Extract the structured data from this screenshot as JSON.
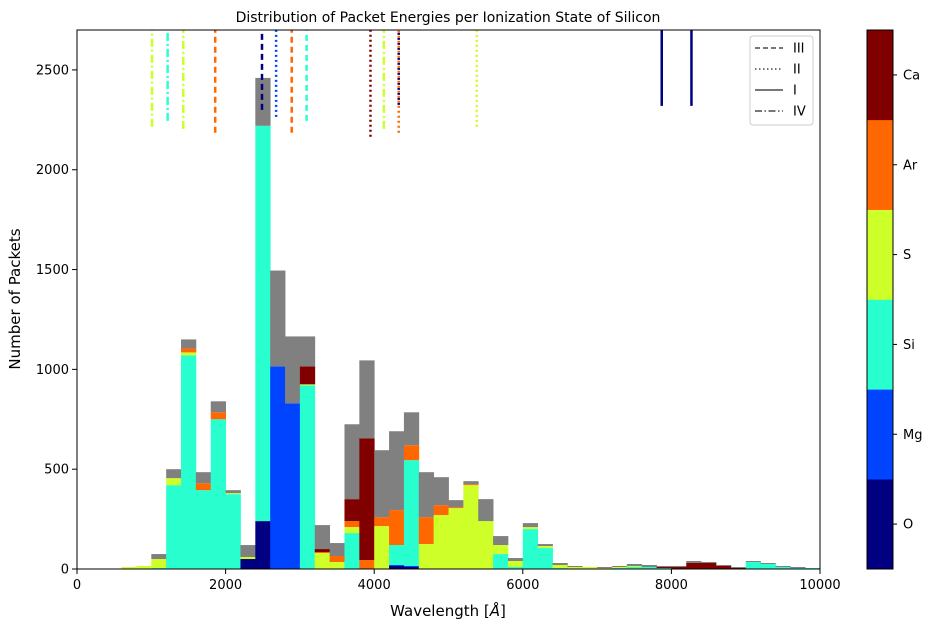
{
  "chart_data": {
    "type": "bar",
    "title": "Distribution of Packet Energies per Ionization State of Silicon",
    "xlabel": "Wavelength [$\\AA$]",
    "xlabel_text": "Wavelength [",
    "xlabel_unit": "Å",
    "xlabel_close": "]",
    "ylabel": "Number of Packets",
    "xlim": [
      0,
      10000
    ],
    "ylim": [
      0,
      2700
    ],
    "xticks": [
      0,
      2000,
      4000,
      6000,
      8000,
      10000
    ],
    "yticks": [
      0,
      500,
      1000,
      1500,
      2000,
      2500
    ],
    "bin_width": 200,
    "grid": false,
    "stacked": true,
    "series_order": [
      "O",
      "Mg",
      "Si",
      "S",
      "Ar",
      "Ca",
      "other"
    ],
    "series_colors": {
      "O": "#000080",
      "Mg": "#0044ff",
      "Si": "#29ffce",
      "S": "#ceff29",
      "Ar": "#ff6800",
      "Ca": "#800000",
      "other": "#808080"
    },
    "bins": [
      {
        "x0": 600,
        "total": 10,
        "O": 0,
        "Mg": 0,
        "Si": 0,
        "S": 10,
        "Ar": 0,
        "Ca": 0
      },
      {
        "x0": 800,
        "total": 15,
        "O": 0,
        "Mg": 0,
        "Si": 0,
        "S": 15,
        "Ar": 0,
        "Ca": 0
      },
      {
        "x0": 1000,
        "total": 75,
        "O": 0,
        "Mg": 0,
        "Si": 5,
        "S": 45,
        "Ar": 0,
        "Ca": 0
      },
      {
        "x0": 1200,
        "total": 500,
        "O": 0,
        "Mg": 0,
        "Si": 420,
        "S": 35,
        "Ar": 0,
        "Ca": 0
      },
      {
        "x0": 1400,
        "total": 1150,
        "O": 0,
        "Mg": 0,
        "Si": 1070,
        "S": 15,
        "Ar": 20,
        "Ca": 0
      },
      {
        "x0": 1600,
        "total": 485,
        "O": 0,
        "Mg": 0,
        "Si": 395,
        "S": 0,
        "Ar": 35,
        "Ca": 0
      },
      {
        "x0": 1800,
        "total": 840,
        "O": 0,
        "Mg": 0,
        "Si": 750,
        "S": 0,
        "Ar": 35,
        "Ca": 0
      },
      {
        "x0": 2000,
        "total": 395,
        "O": 0,
        "Mg": 0,
        "Si": 375,
        "S": 5,
        "Ar": 0,
        "Ca": 0
      },
      {
        "x0": 2200,
        "total": 120,
        "O": 50,
        "Mg": 0,
        "Si": 0,
        "S": 10,
        "Ar": 0,
        "Ca": 0
      },
      {
        "x0": 2400,
        "total": 2460,
        "O": 240,
        "Mg": 0,
        "Si": 1980,
        "S": 0,
        "Ar": 0,
        "Ca": 0
      },
      {
        "x0": 2600,
        "total": 1495,
        "O": 0,
        "Mg": 1015,
        "Si": 0,
        "S": 0,
        "Ar": 0,
        "Ca": 0
      },
      {
        "x0": 2800,
        "total": 1165,
        "O": 0,
        "Mg": 830,
        "Si": 0,
        "S": 0,
        "Ar": 0,
        "Ca": 0
      },
      {
        "x0": 3000,
        "total": 1165,
        "O": 0,
        "Mg": 0,
        "Si": 920,
        "S": 5,
        "Ar": 0,
        "Ca": 90
      },
      {
        "x0": 3200,
        "total": 220,
        "O": 0,
        "Mg": 0,
        "Si": 0,
        "S": 80,
        "Ar": 5,
        "Ca": 15
      },
      {
        "x0": 3400,
        "total": 130,
        "O": 0,
        "Mg": 0,
        "Si": 0,
        "S": 35,
        "Ar": 30,
        "Ca": 0
      },
      {
        "x0": 3600,
        "total": 725,
        "O": 0,
        "Mg": 0,
        "Si": 180,
        "S": 30,
        "Ar": 30,
        "Ca": 110
      },
      {
        "x0": 3800,
        "total": 1045,
        "O": 0,
        "Mg": 0,
        "Si": 0,
        "S": 0,
        "Ar": 45,
        "Ca": 610
      },
      {
        "x0": 4000,
        "total": 595,
        "O": 0,
        "Mg": 0,
        "Si": 0,
        "S": 215,
        "Ar": 45,
        "Ca": 0
      },
      {
        "x0": 4200,
        "total": 690,
        "O": 15,
        "Mg": 5,
        "Si": 100,
        "S": 0,
        "Ar": 175,
        "Ca": 0
      },
      {
        "x0": 4400,
        "total": 785,
        "O": 10,
        "Mg": 5,
        "Si": 530,
        "S": 0,
        "Ar": 75,
        "Ca": 0
      },
      {
        "x0": 4600,
        "total": 485,
        "O": 0,
        "Mg": 0,
        "Si": 0,
        "S": 125,
        "Ar": 135,
        "Ca": 0
      },
      {
        "x0": 4800,
        "total": 460,
        "O": 0,
        "Mg": 0,
        "Si": 0,
        "S": 270,
        "Ar": 50,
        "Ca": 0
      },
      {
        "x0": 5000,
        "total": 345,
        "O": 0,
        "Mg": 0,
        "Si": 0,
        "S": 305,
        "Ar": 5,
        "Ca": 0
      },
      {
        "x0": 5200,
        "total": 440,
        "O": 0,
        "Mg": 0,
        "Si": 0,
        "S": 420,
        "Ar": 5,
        "Ca": 0
      },
      {
        "x0": 5400,
        "total": 350,
        "O": 0,
        "Mg": 0,
        "Si": 0,
        "S": 240,
        "Ar": 0,
        "Ca": 0
      },
      {
        "x0": 5600,
        "total": 165,
        "O": 0,
        "Mg": 0,
        "Si": 75,
        "S": 45,
        "Ar": 0,
        "Ca": 0
      },
      {
        "x0": 5800,
        "total": 55,
        "O": 0,
        "Mg": 0,
        "Si": 10,
        "S": 30,
        "Ar": 0,
        "Ca": 0
      },
      {
        "x0": 6000,
        "total": 230,
        "O": 0,
        "Mg": 0,
        "Si": 200,
        "S": 10,
        "Ar": 0,
        "Ca": 0
      },
      {
        "x0": 6200,
        "total": 125,
        "O": 0,
        "Mg": 0,
        "Si": 105,
        "S": 10,
        "Ar": 0,
        "Ca": 0
      },
      {
        "x0": 6400,
        "total": 30,
        "O": 0,
        "Mg": 0,
        "Si": 5,
        "S": 15,
        "Ar": 0,
        "Ca": 0
      },
      {
        "x0": 6600,
        "total": 15,
        "O": 0,
        "Mg": 0,
        "Si": 0,
        "S": 10,
        "Ar": 0,
        "Ca": 0
      },
      {
        "x0": 6800,
        "total": 10,
        "O": 0,
        "Mg": 0,
        "Si": 0,
        "S": 10,
        "Ar": 0,
        "Ca": 0
      },
      {
        "x0": 7000,
        "total": 10,
        "O": 0,
        "Mg": 0,
        "Si": 0,
        "S": 5,
        "Ar": 0,
        "Ca": 0
      },
      {
        "x0": 7200,
        "total": 15,
        "O": 0,
        "Mg": 0,
        "Si": 5,
        "S": 5,
        "Ar": 0,
        "Ca": 0
      },
      {
        "x0": 7400,
        "total": 25,
        "O": 0,
        "Mg": 0,
        "Si": 10,
        "S": 5,
        "Ar": 0,
        "Ca": 0
      },
      {
        "x0": 7600,
        "total": 20,
        "O": 0,
        "Mg": 0,
        "Si": 10,
        "S": 0,
        "Ar": 0,
        "Ca": 0
      },
      {
        "x0": 7800,
        "total": 15,
        "O": 0,
        "Mg": 0,
        "Si": 5,
        "S": 0,
        "Ar": 0,
        "Ca": 5
      },
      {
        "x0": 8000,
        "total": 15,
        "O": 0,
        "Mg": 0,
        "Si": 0,
        "S": 0,
        "Ar": 0,
        "Ca": 10
      },
      {
        "x0": 8200,
        "total": 40,
        "O": 0,
        "Mg": 0,
        "Si": 0,
        "S": 0,
        "Ar": 0,
        "Ca": 30
      },
      {
        "x0": 8400,
        "total": 35,
        "O": 0,
        "Mg": 0,
        "Si": 0,
        "S": 0,
        "Ar": 0,
        "Ca": 30
      },
      {
        "x0": 8600,
        "total": 20,
        "O": 0,
        "Mg": 0,
        "Si": 0,
        "S": 0,
        "Ar": 0,
        "Ca": 15
      },
      {
        "x0": 8800,
        "total": 10,
        "O": 0,
        "Mg": 0,
        "Si": 0,
        "S": 0,
        "Ar": 0,
        "Ca": 5
      },
      {
        "x0": 9000,
        "total": 40,
        "O": 0,
        "Mg": 0,
        "Si": 35,
        "S": 0,
        "Ar": 0,
        "Ca": 0
      },
      {
        "x0": 9200,
        "total": 30,
        "O": 0,
        "Mg": 0,
        "Si": 25,
        "S": 0,
        "Ar": 0,
        "Ca": 0
      },
      {
        "x0": 9400,
        "total": 15,
        "O": 0,
        "Mg": 0,
        "Si": 10,
        "S": 0,
        "Ar": 0,
        "Ca": 0
      },
      {
        "x0": 9600,
        "total": 10,
        "O": 0,
        "Mg": 0,
        "Si": 5,
        "S": 0,
        "Ar": 0,
        "Ca": 0
      },
      {
        "x0": 9800,
        "total": 5,
        "O": 0,
        "Mg": 0,
        "Si": 5,
        "S": 0,
        "Ar": 0,
        "Ca": 0
      }
    ],
    "line_markers": [
      {
        "wavelength": 1010,
        "element": "S",
        "style": "IV",
        "ymin": 2215,
        "ymax": 2700
      },
      {
        "wavelength": 1220,
        "element": "Si",
        "style": "IV",
        "ymin": 2245,
        "ymax": 2700
      },
      {
        "wavelength": 1430,
        "element": "S",
        "style": "IV",
        "ymin": 2205,
        "ymax": 2700
      },
      {
        "wavelength": 1860,
        "element": "Ar",
        "style": "III",
        "ymin": 2185,
        "ymax": 2700
      },
      {
        "wavelength": 2490,
        "element": "O",
        "style": "III",
        "ymin": 2300,
        "ymax": 2700
      },
      {
        "wavelength": 2680,
        "element": "Mg",
        "style": "II",
        "ymin": 2265,
        "ymax": 2700
      },
      {
        "wavelength": 2890,
        "element": "Ar",
        "style": "III",
        "ymin": 2185,
        "ymax": 2700
      },
      {
        "wavelength": 3090,
        "element": "Si",
        "style": "III",
        "ymin": 2245,
        "ymax": 2700
      },
      {
        "wavelength": 3950,
        "element": "Ca",
        "style": "II",
        "ymin": 2165,
        "ymax": 2700
      },
      {
        "wavelength": 4130,
        "element": "S",
        "style": "IV",
        "ymin": 2205,
        "ymax": 2700
      },
      {
        "wavelength": 4330,
        "element": "O",
        "style": "II",
        "ymin": 2325,
        "ymax": 2700
      },
      {
        "wavelength": 4330,
        "element": "Ar",
        "style": "II",
        "ymin": 2185,
        "ymax": 2700
      },
      {
        "wavelength": 5380,
        "element": "S",
        "style": "II",
        "ymin": 2215,
        "ymax": 2700
      },
      {
        "wavelength": 7870,
        "element": "O",
        "style": "I",
        "ymin": 2320,
        "ymax": 2700
      },
      {
        "wavelength": 8270,
        "element": "O",
        "style": "I",
        "ymin": 2320,
        "ymax": 2700
      }
    ],
    "legend": {
      "placement": "top-right",
      "entries": [
        {
          "label": "III",
          "style": "dashed"
        },
        {
          "label": "II",
          "style": "dotted"
        },
        {
          "label": "I",
          "style": "solid"
        },
        {
          "label": "IV",
          "style": "dashdot"
        }
      ]
    },
    "colorbar": {
      "ticks": [
        "O",
        "Mg",
        "Si",
        "S",
        "Ar",
        "Ca"
      ],
      "colors": [
        "#000080",
        "#0044ff",
        "#29ffce",
        "#ceff29",
        "#ff6800",
        "#800000"
      ]
    }
  }
}
